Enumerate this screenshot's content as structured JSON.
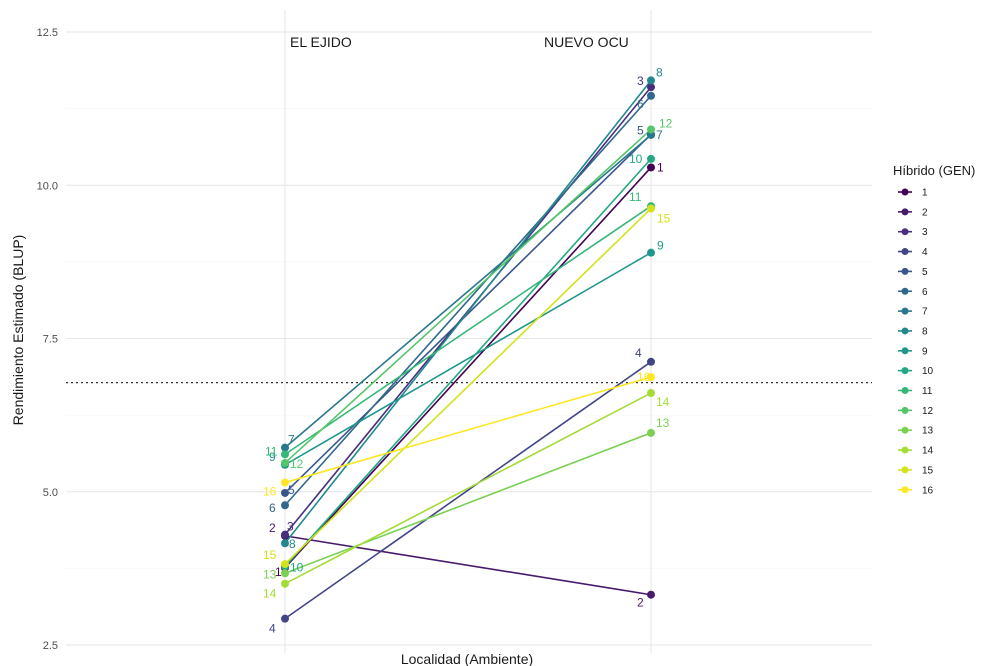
{
  "chart_data": {
    "type": "line",
    "xlabel": "Localidad (Ambiente)",
    "ylabel": "Rendimiento Estimado (BLUP)",
    "ylim": [
      2.5,
      12.5
    ],
    "yticks": [
      "2.5",
      "5.0",
      "7.5",
      "10.0",
      "12.5"
    ],
    "x": [
      "EL EJIDO",
      "NUEVO OCU"
    ],
    "reference_line": 6.78,
    "grid": true,
    "legend": {
      "title": "Híbrido (GEN)",
      "placement": "right"
    },
    "series": [
      {
        "name": "1",
        "values": [
          3.76,
          10.29
        ],
        "color": "#440154"
      },
      {
        "name": "2",
        "values": [
          4.28,
          3.32
        ],
        "color": "#481A6C"
      },
      {
        "name": "3",
        "values": [
          4.3,
          11.6
        ],
        "color": "#472F7D"
      },
      {
        "name": "4",
        "values": [
          2.93,
          7.12
        ],
        "color": "#414487"
      },
      {
        "name": "5",
        "values": [
          4.98,
          10.83
        ],
        "color": "#39568C"
      },
      {
        "name": "6",
        "values": [
          4.78,
          11.46
        ],
        "color": "#31688E"
      },
      {
        "name": "7",
        "values": [
          5.72,
          10.82
        ],
        "color": "#2A788E"
      },
      {
        "name": "8",
        "values": [
          4.16,
          11.71
        ],
        "color": "#23888E"
      },
      {
        "name": "9",
        "values": [
          5.44,
          8.9
        ],
        "color": "#1F988B"
      },
      {
        "name": "10",
        "values": [
          3.78,
          10.43
        ],
        "color": "#22A884"
      },
      {
        "name": "11",
        "values": [
          5.61,
          9.66
        ],
        "color": "#35B779"
      },
      {
        "name": "12",
        "values": [
          5.47,
          10.91
        ],
        "color": "#54C568"
      },
      {
        "name": "13",
        "values": [
          3.67,
          5.96
        ],
        "color": "#7AD151"
      },
      {
        "name": "14",
        "values": [
          3.5,
          6.61
        ],
        "color": "#A5DB36"
      },
      {
        "name": "15",
        "values": [
          3.82,
          9.62
        ],
        "color": "#D2E21B"
      },
      {
        "name": "16",
        "values": [
          5.15,
          6.87
        ],
        "color": "#FDE725"
      }
    ]
  }
}
